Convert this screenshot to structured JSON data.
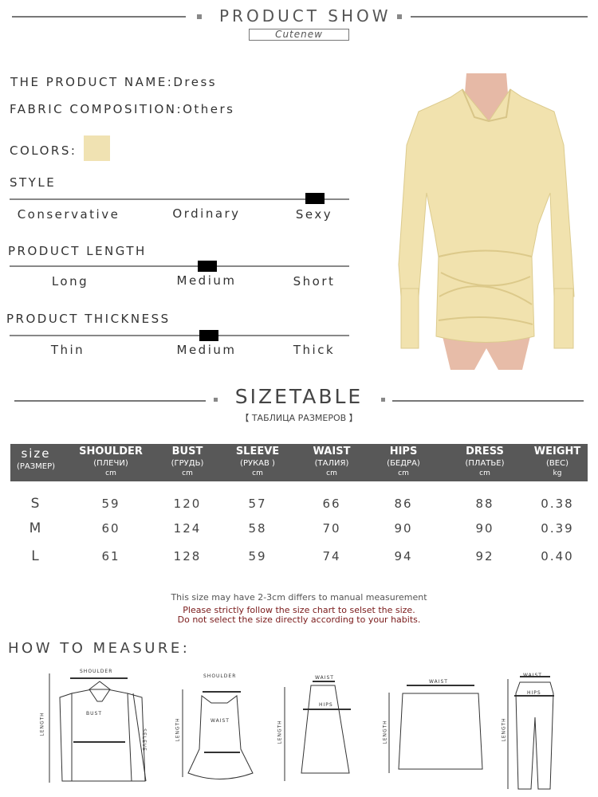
{
  "header": {
    "title": "PRODUCT SHOW",
    "brand": "Cutenew"
  },
  "product": {
    "name_label": "THE PRODUCT NAME:",
    "name": "Dress",
    "fabric_label": "FABRIC COMPOSITION:",
    "fabric": "Others",
    "colors_label": "COLORS:",
    "color_swatch": "#f0e2b2"
  },
  "attributes": [
    {
      "title": "STYLE",
      "options": [
        "Conservative",
        "Ordinary",
        "Sexy"
      ],
      "selected": "Sexy"
    },
    {
      "title": "PRODUCT LENGTH",
      "options": [
        "Long",
        "Medium",
        "Short"
      ],
      "selected": "Medium"
    },
    {
      "title": "PRODUCT THICKNESS",
      "options": [
        "Thin",
        "Medium",
        "Thick"
      ],
      "selected": "Medium"
    }
  ],
  "sizetable": {
    "title": "SIZETABLE",
    "subtitle": "【 ТАБЛИЦА РАЗМЕРОВ 】",
    "columns": [
      {
        "main": "size",
        "ru": "(РАЗМЕР)",
        "unit": ""
      },
      {
        "main": "SHOULDER",
        "ru": "(ПЛЕЧИ)",
        "unit": "cm"
      },
      {
        "main": "BUST",
        "ru": "(ГРУДЬ)",
        "unit": "cm"
      },
      {
        "main": "SLEEVE",
        "ru": "(РУКАВ )",
        "unit": "cm"
      },
      {
        "main": "WAIST",
        "ru": "(ТАЛИЯ)",
        "unit": "cm"
      },
      {
        "main": "HIPS",
        "ru": "(БЕДРА)",
        "unit": "cm"
      },
      {
        "main": "DRESS",
        "ru": "(ПЛАТЬЕ)",
        "unit": "cm"
      },
      {
        "main": "WEIGHT",
        "ru": "(ВЕС)",
        "unit": "kg"
      }
    ],
    "rows": [
      [
        "S",
        "59",
        "120",
        "57",
        "66",
        "86",
        "88",
        "0.38"
      ],
      [
        "M",
        "60",
        "124",
        "58",
        "70",
        "90",
        "90",
        "0.39"
      ],
      [
        "L",
        "61",
        "128",
        "59",
        "74",
        "94",
        "92",
        "0.40"
      ]
    ]
  },
  "notes": {
    "line1": "This size may have 2-3cm differs to manual measurement",
    "line2": "Please strictly follow the size chart to selset the size.",
    "line3": "Do not select the size directly according to your habits."
  },
  "measure": {
    "title": "HOW TO MEASURE:",
    "labels": {
      "shoulder": "SHOULDER",
      "bust": "BUST",
      "waist": "WAIST",
      "hips": "HIPS",
      "length": "LENGTH",
      "sleeve": "SELEVE"
    }
  }
}
